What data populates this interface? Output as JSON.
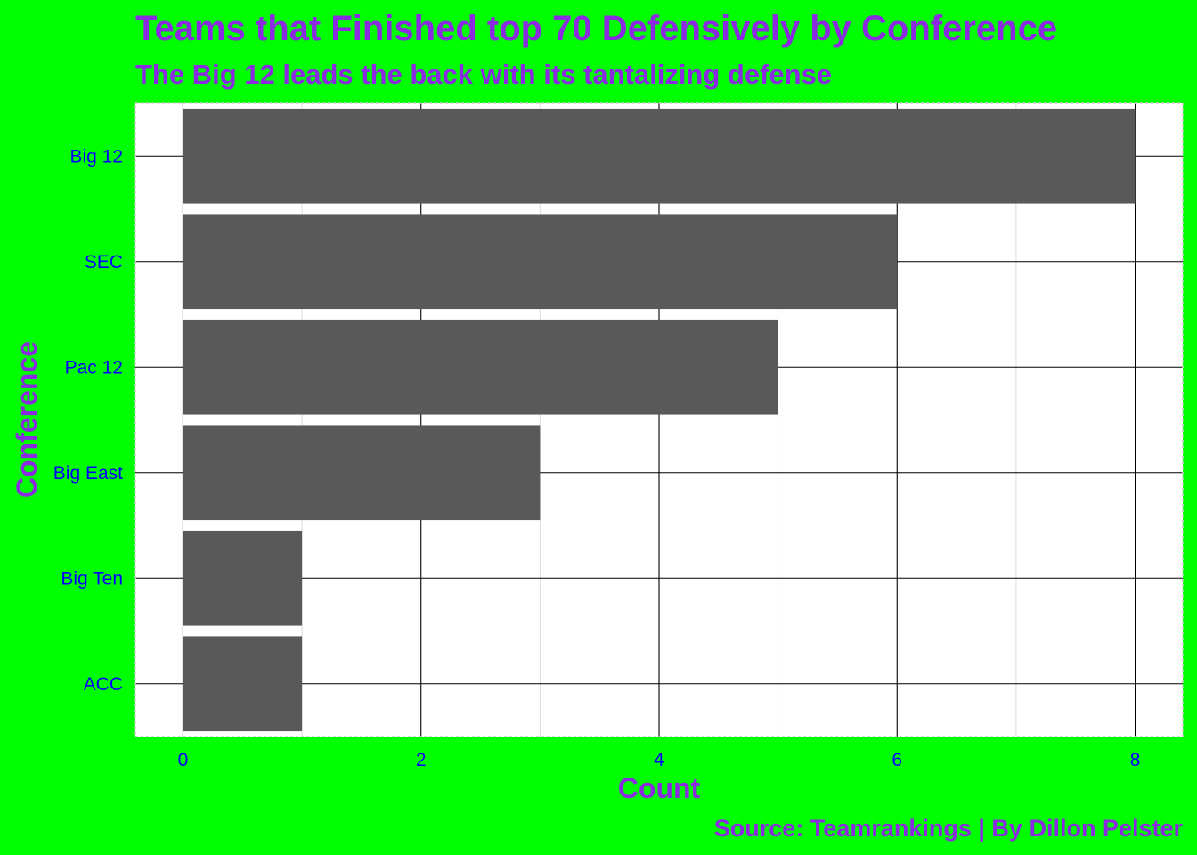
{
  "chart_data": {
    "type": "bar",
    "orientation": "horizontal",
    "title": "Teams that Finished top 70 Defensively by Conference",
    "subtitle": "The Big 12 leads the back with its tantalizing defense",
    "xlabel": "Count",
    "ylabel": "Conference",
    "caption": "Source: Teamrankings | By Dillon Pelster",
    "categories": [
      "Big 12",
      "SEC",
      "Pac 12",
      "Big East",
      "Big Ten",
      "ACC"
    ],
    "values": [
      8,
      6,
      5,
      3,
      1,
      1
    ],
    "xlim": [
      -0.4,
      8.4
    ],
    "xticks": [
      "0",
      "2",
      "4",
      "6",
      "8"
    ],
    "grid": true,
    "legend": "none",
    "colors": {
      "background": "#00ff00",
      "panel": "#ffffff",
      "bar": "#595959",
      "text": "#8a2be2",
      "tick_text": "#0000ff"
    }
  }
}
